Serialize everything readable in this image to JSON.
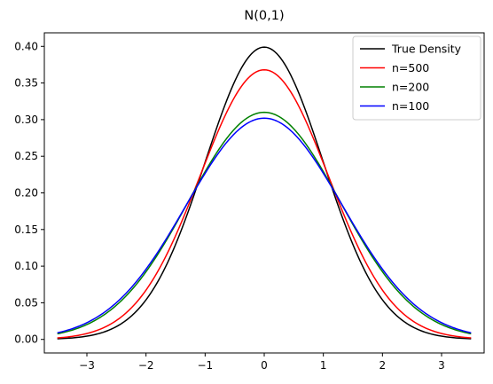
{
  "chart_data": {
    "type": "line",
    "title": "N(0,1)",
    "xlabel": "",
    "ylabel": "",
    "xlim": [
      -3.72,
      3.72
    ],
    "ylim": [
      -0.0185,
      0.4185
    ],
    "x_ticks": [
      -3,
      -2,
      -1,
      0,
      1,
      2,
      3
    ],
    "x_tick_labels": [
      "−3",
      "−2",
      "−1",
      "0",
      "1",
      "2",
      "3"
    ],
    "y_ticks": [
      0.0,
      0.05,
      0.1,
      0.15,
      0.2,
      0.25,
      0.3,
      0.35,
      0.4
    ],
    "y_tick_labels": [
      "0.00",
      "0.05",
      "0.10",
      "0.15",
      "0.20",
      "0.25",
      "0.30",
      "0.35",
      "0.40"
    ],
    "grid": false,
    "legend_position": "top-right",
    "x_range": [
      -3.5,
      3.5
    ],
    "series": [
      {
        "name": "True Density",
        "color": "#000000",
        "peak": 0.399,
        "sd": 1.0
      },
      {
        "name": "n=500",
        "color": "#ff0000",
        "peak": 0.368,
        "sd": 1.085
      },
      {
        "name": "n=200",
        "color": "#008000",
        "peak": 0.31,
        "sd": 1.285
      },
      {
        "name": "n=100",
        "color": "#0000ff",
        "peak": 0.302,
        "sd": 1.32
      }
    ]
  }
}
